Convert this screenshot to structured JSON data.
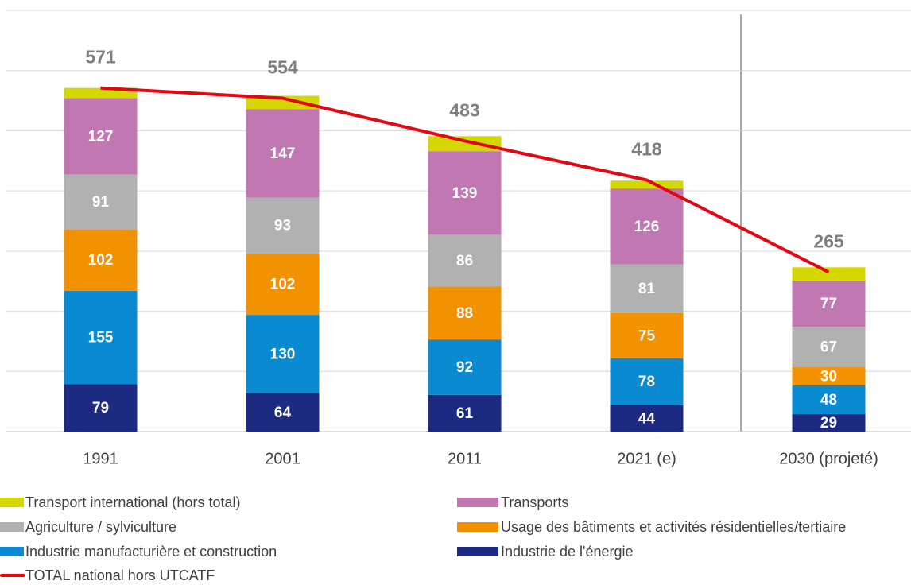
{
  "chart_data": {
    "type": "stacked-bar-line",
    "categories": [
      "1991",
      "2001",
      "2011",
      "2021 (e)",
      "2030 (projeté)"
    ],
    "series": [
      {
        "name": "Transport international (hors total)",
        "color": "#d4d800",
        "values": [
          17,
          22,
          25,
          13,
          22
        ]
      },
      {
        "name": "Transports",
        "color": "#c178b2",
        "values": [
          127,
          147,
          139,
          126,
          77
        ]
      },
      {
        "name": "Agriculture / sylviculture",
        "color": "#b1b1b1",
        "values": [
          91,
          93,
          86,
          81,
          67
        ]
      },
      {
        "name": "Usage des bâtiments et activités résidentielles/tertiaire",
        "color": "#f39200",
        "values": [
          102,
          102,
          88,
          75,
          30
        ]
      },
      {
        "name": "Industrie manufacturière et construction",
        "color": "#0a8ad0",
        "values": [
          155,
          130,
          92,
          78,
          48
        ]
      },
      {
        "name": "Industrie de l'énergie",
        "color": "#1d2a82",
        "values": [
          79,
          64,
          61,
          44,
          29
        ]
      }
    ],
    "line": {
      "name": "TOTAL national hors UTCATF",
      "color": "#e30613",
      "values": [
        571,
        554,
        483,
        418,
        265
      ]
    },
    "ylim": [
      0,
      700
    ],
    "yticks": [
      0,
      100,
      200,
      300,
      400,
      500,
      600,
      700
    ],
    "grid": true
  }
}
